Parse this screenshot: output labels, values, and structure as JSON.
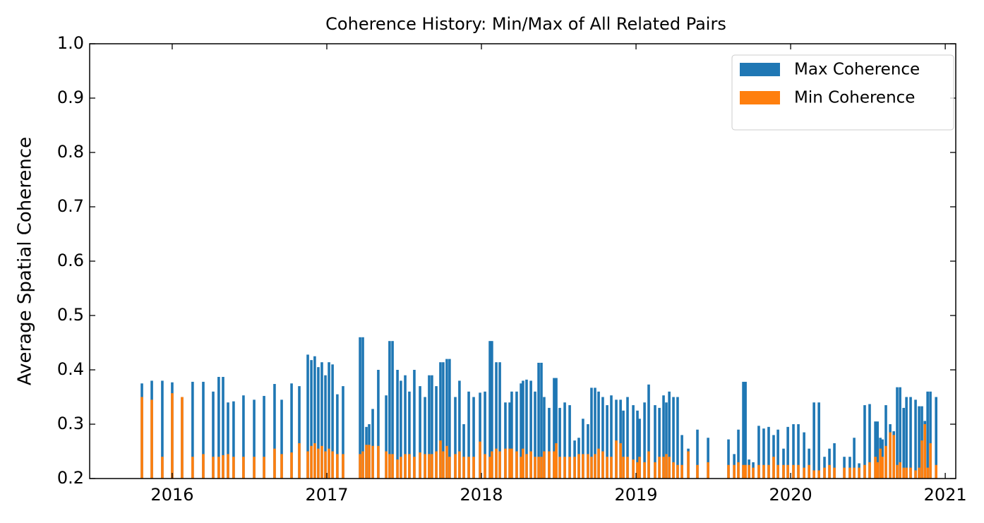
{
  "chart_data": {
    "type": "bar",
    "title": "Coherence History: Min/Max of All Related Pairs",
    "y_label": "Average Spatial Coherence",
    "x": [
      2015.804,
      2015.868,
      2015.936,
      2016.0,
      2016.064,
      2016.132,
      2016.201,
      2016.265,
      2016.301,
      2016.329,
      2016.361,
      2016.397,
      2016.461,
      2016.53,
      2016.594,
      2016.662,
      2016.708,
      2016.772,
      2016.822,
      2016.877,
      2016.9,
      2016.922,
      2016.945,
      2016.968,
      2016.991,
      2017.014,
      2017.037,
      2017.068,
      2017.105,
      2017.215,
      2017.233,
      2017.256,
      2017.274,
      2017.297,
      2017.333,
      2017.384,
      2017.406,
      2017.425,
      2017.457,
      2017.479,
      2017.507,
      2017.534,
      2017.566,
      2017.603,
      2017.635,
      2017.662,
      2017.68,
      2017.708,
      2017.735,
      2017.753,
      2017.776,
      2017.794,
      2017.831,
      2017.858,
      2017.886,
      2017.918,
      2017.95,
      2017.991,
      2018.023,
      2018.055,
      2018.068,
      2018.096,
      2018.119,
      2018.155,
      2018.183,
      2018.196,
      2018.228,
      2018.256,
      2018.269,
      2018.292,
      2018.32,
      2018.347,
      2018.37,
      2018.388,
      2018.406,
      2018.438,
      2018.47,
      2018.484,
      2018.507,
      2018.539,
      2018.571,
      2018.603,
      2018.63,
      2018.657,
      2018.689,
      2018.712,
      2018.735,
      2018.758,
      2018.785,
      2018.813,
      2018.84,
      2018.872,
      2018.9,
      2018.918,
      2018.945,
      2018.982,
      2019.009,
      2019.023,
      2019.055,
      2019.082,
      2019.123,
      2019.151,
      2019.178,
      2019.196,
      2019.215,
      2019.242,
      2019.269,
      2019.297,
      2019.338,
      2019.397,
      2019.466,
      2019.598,
      2019.635,
      2019.662,
      2019.694,
      2019.708,
      2019.731,
      2019.758,
      2019.794,
      2019.826,
      2019.858,
      2019.89,
      2019.918,
      2019.954,
      2019.982,
      2020.018,
      2020.05,
      2020.087,
      2020.119,
      2020.151,
      2020.183,
      2020.219,
      2020.251,
      2020.283,
      2020.347,
      2020.383,
      2020.411,
      2020.443,
      2020.479,
      2020.511,
      2020.548,
      2020.562,
      2020.58,
      2020.594,
      2020.616,
      2020.644,
      2020.667,
      2020.689,
      2020.708,
      2020.731,
      2020.749,
      2020.776,
      2020.808,
      2020.831,
      2020.849,
      2020.868,
      2020.886,
      2020.904,
      2020.941
    ],
    "series": [
      {
        "name": "Max Coherence",
        "color": "#1f77b4",
        "values": [
          0.375,
          0.38,
          0.38,
          0.377,
          0.35,
          0.378,
          0.378,
          0.36,
          0.387,
          0.387,
          0.34,
          0.342,
          0.353,
          0.345,
          0.352,
          0.374,
          0.345,
          0.375,
          0.37,
          0.428,
          0.418,
          0.425,
          0.405,
          0.414,
          0.39,
          0.414,
          0.41,
          0.355,
          0.37,
          0.46,
          0.46,
          0.295,
          0.3,
          0.328,
          0.4,
          0.353,
          0.453,
          0.453,
          0.4,
          0.38,
          0.39,
          0.36,
          0.4,
          0.37,
          0.35,
          0.39,
          0.39,
          0.37,
          0.414,
          0.414,
          0.42,
          0.42,
          0.35,
          0.38,
          0.3,
          0.36,
          0.35,
          0.358,
          0.36,
          0.453,
          0.453,
          0.414,
          0.414,
          0.34,
          0.34,
          0.36,
          0.36,
          0.375,
          0.38,
          0.382,
          0.38,
          0.36,
          0.413,
          0.413,
          0.35,
          0.33,
          0.385,
          0.385,
          0.33,
          0.34,
          0.335,
          0.27,
          0.275,
          0.31,
          0.3,
          0.367,
          0.367,
          0.36,
          0.35,
          0.335,
          0.353,
          0.345,
          0.345,
          0.325,
          0.35,
          0.335,
          0.325,
          0.31,
          0.34,
          0.373,
          0.335,
          0.33,
          0.353,
          0.34,
          0.36,
          0.35,
          0.35,
          0.28,
          0.255,
          0.29,
          0.275,
          0.272,
          0.245,
          0.29,
          0.378,
          0.378,
          0.235,
          0.23,
          0.297,
          0.292,
          0.295,
          0.28,
          0.29,
          0.255,
          0.295,
          0.3,
          0.3,
          0.285,
          0.255,
          0.34,
          0.34,
          0.24,
          0.255,
          0.265,
          0.24,
          0.24,
          0.275,
          0.228,
          0.335,
          0.337,
          0.305,
          0.305,
          0.275,
          0.272,
          0.335,
          0.3,
          0.287,
          0.368,
          0.368,
          0.33,
          0.35,
          0.35,
          0.345,
          0.333,
          0.333,
          0.306,
          0.36,
          0.36,
          0.35
        ]
      },
      {
        "name": "Min Coherence",
        "color": "#ff7f0e",
        "values": [
          0.35,
          0.345,
          0.24,
          0.357,
          0.35,
          0.24,
          0.245,
          0.24,
          0.24,
          0.243,
          0.245,
          0.24,
          0.24,
          0.24,
          0.24,
          0.255,
          0.245,
          0.248,
          0.265,
          0.25,
          0.26,
          0.265,
          0.255,
          0.26,
          0.25,
          0.255,
          0.25,
          0.245,
          0.245,
          0.245,
          0.25,
          0.262,
          0.262,
          0.26,
          0.26,
          0.25,
          0.245,
          0.245,
          0.235,
          0.24,
          0.245,
          0.245,
          0.24,
          0.248,
          0.245,
          0.245,
          0.245,
          0.25,
          0.27,
          0.25,
          0.26,
          0.24,
          0.245,
          0.25,
          0.24,
          0.24,
          0.24,
          0.268,
          0.245,
          0.24,
          0.25,
          0.255,
          0.25,
          0.255,
          0.255,
          0.255,
          0.25,
          0.24,
          0.255,
          0.245,
          0.25,
          0.24,
          0.24,
          0.24,
          0.25,
          0.25,
          0.25,
          0.265,
          0.24,
          0.24,
          0.24,
          0.24,
          0.245,
          0.245,
          0.245,
          0.24,
          0.245,
          0.255,
          0.25,
          0.24,
          0.24,
          0.27,
          0.265,
          0.24,
          0.24,
          0.235,
          0.23,
          0.24,
          0.23,
          0.25,
          0.23,
          0.24,
          0.24,
          0.245,
          0.24,
          0.23,
          0.225,
          0.225,
          0.25,
          0.225,
          0.23,
          0.225,
          0.225,
          0.23,
          0.225,
          0.225,
          0.225,
          0.22,
          0.225,
          0.225,
          0.225,
          0.24,
          0.225,
          0.225,
          0.225,
          0.225,
          0.225,
          0.22,
          0.225,
          0.215,
          0.215,
          0.22,
          0.225,
          0.22,
          0.22,
          0.22,
          0.22,
          0.22,
          0.225,
          0.23,
          0.24,
          0.23,
          0.255,
          0.24,
          0.26,
          0.285,
          0.28,
          0.225,
          0.23,
          0.22,
          0.22,
          0.22,
          0.215,
          0.22,
          0.27,
          0.3,
          0.22,
          0.265,
          0.225
        ]
      }
    ],
    "xlim": [
      2015.466,
      2021.068
    ],
    "xticks": [
      2016,
      2017,
      2018,
      2019,
      2020,
      2021
    ],
    "ylim": [
      0.2,
      1.0
    ],
    "yticks": [
      0.2,
      0.3,
      0.4,
      0.5,
      0.6,
      0.7,
      0.8,
      0.9,
      {
        "value": 1.0,
        "label": "1.0"
      }
    ],
    "legend": "upper right",
    "grid": false
  }
}
